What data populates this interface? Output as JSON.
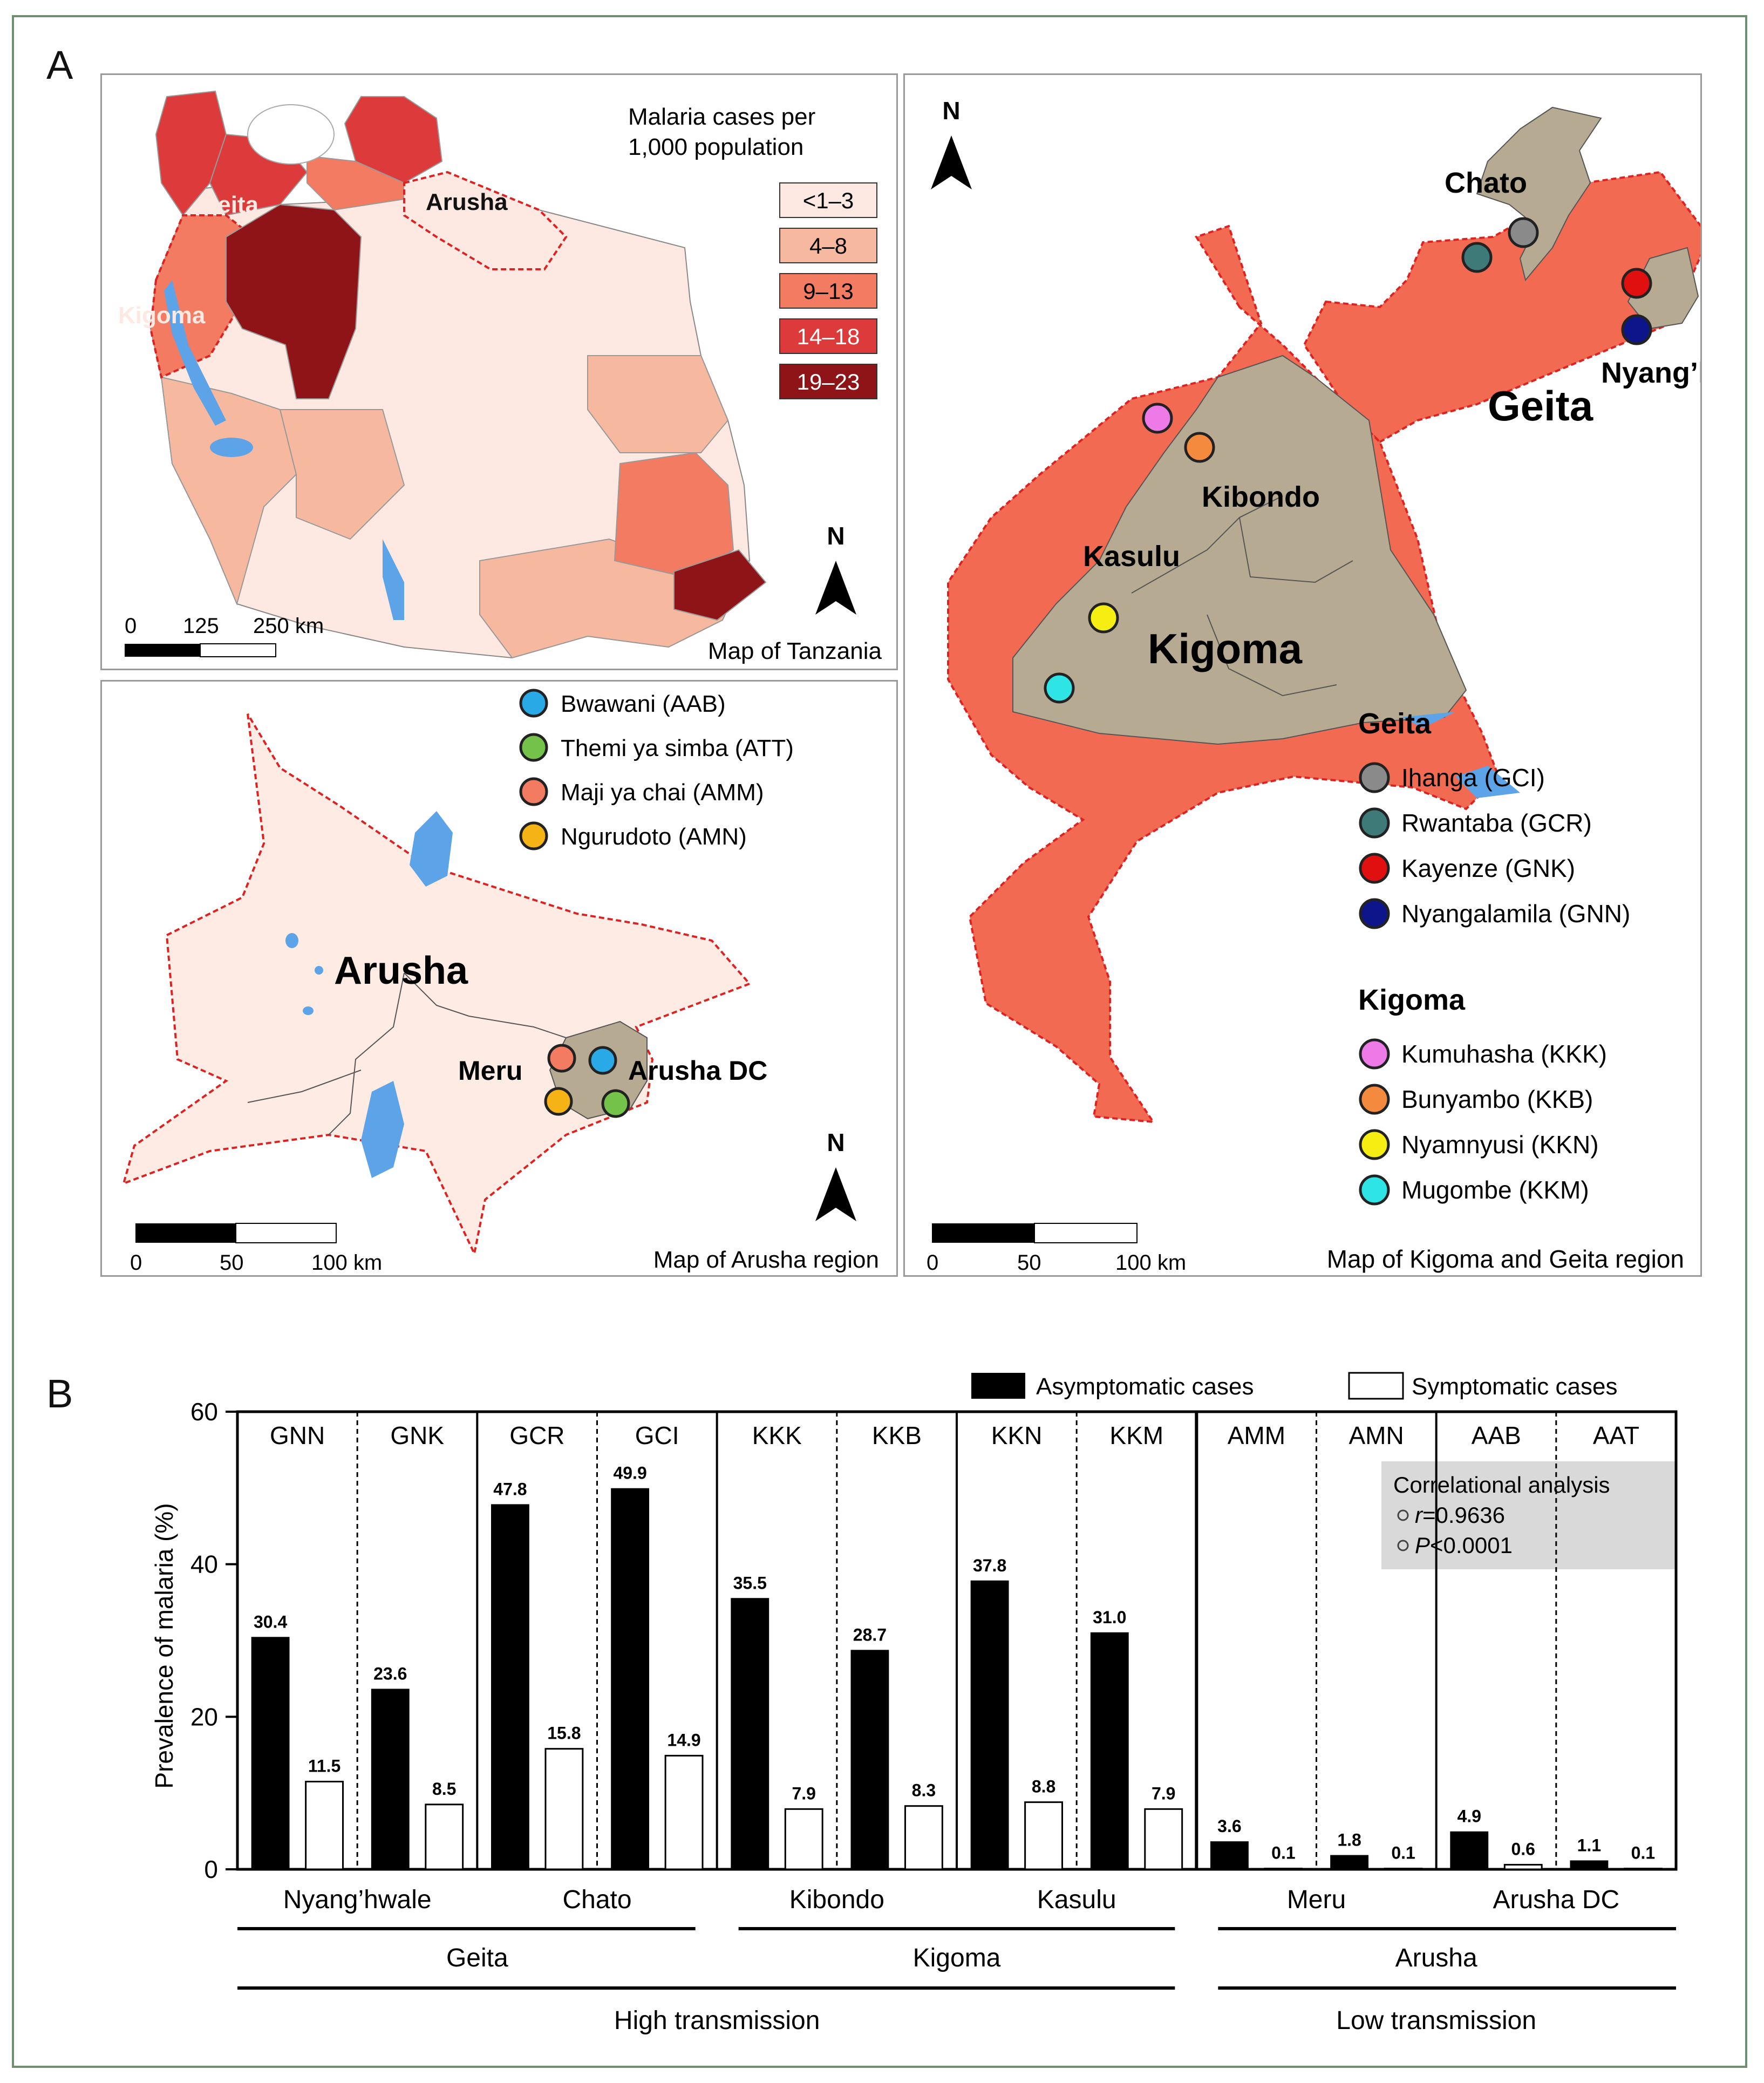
{
  "panel_labels": {
    "a": "A",
    "b": "B"
  },
  "tanzania_map": {
    "title": "Map of Tanzania",
    "legend_title_1": "Malaria cases per",
    "legend_title_2": "1,000 population",
    "legend": [
      {
        "label": "<1–3",
        "color": "#fde9e2"
      },
      {
        "label": "4–8",
        "color": "#f6b9a0"
      },
      {
        "label": "9–13",
        "color": "#f27b62"
      },
      {
        "label": "14–18",
        "color": "#dd3b3b"
      },
      {
        "label": "19–23",
        "color": "#8e1418"
      }
    ],
    "region_labels": {
      "geita": "Geita",
      "kigoma": "Kigoma",
      "arusha": "Arusha"
    },
    "north": "N",
    "scale": {
      "s0": "0",
      "s1": "125",
      "s2": "250 km"
    }
  },
  "arusha_map": {
    "title": "Map of Arusha region",
    "region_label": "Arusha",
    "district_labels": {
      "meru": "Meru",
      "arusha_dc": "Arusha DC"
    },
    "north": "N",
    "scale": {
      "s0": "0",
      "s1": "50",
      "s2": "100 km"
    },
    "legend": [
      {
        "label": "Bwawani (AAB)",
        "color": "#29a9e6"
      },
      {
        "label": "Themi ya simba (ATT)",
        "color": "#74c24a"
      },
      {
        "label": "Maji ya chai (AMM)",
        "color": "#f27b62"
      },
      {
        "label": "Ngurudoto (AMN)",
        "color": "#f5b316"
      }
    ]
  },
  "kigoma_geita_map": {
    "title": "Map of Kigoma and Geita region",
    "region_labels": {
      "geita": "Geita",
      "kigoma": "Kigoma"
    },
    "district_labels": {
      "chato": "Chato",
      "nyanghwale": "Nyang’hwale",
      "kibondo": "Kibondo",
      "kasulu": "Kasulu"
    },
    "north": "N",
    "scale": {
      "s0": "0",
      "s1": "50",
      "s2": "100 km"
    },
    "legend_geita_title": "Geita",
    "legend_geita": [
      {
        "label": "Ihanga (GCI)",
        "color": "#8a8a8a"
      },
      {
        "label": "Rwantaba (GCR)",
        "color": "#3e7a78"
      },
      {
        "label": "Kayenze (GNK)",
        "color": "#e01010"
      },
      {
        "label": "Nyangalamila (GNN)",
        "color": "#0c168a"
      }
    ],
    "legend_kigoma_title": "Kigoma",
    "legend_kigoma": [
      {
        "label": "Kumuhasha (KKK)",
        "color": "#ee7ae8"
      },
      {
        "label": "Bunyambo (KKB)",
        "color": "#f48a3e"
      },
      {
        "label": "Nyamnyusi (KKN)",
        "color": "#f6ee12"
      },
      {
        "label": "Mugombe (KKM)",
        "color": "#2fe4e4"
      }
    ]
  },
  "chart_data": {
    "type": "bar",
    "ylabel": "Prevalence of malaria (%)",
    "ylim": [
      0,
      60
    ],
    "yticks": [
      "0",
      "20",
      "40",
      "60"
    ],
    "categories": [
      "GNN",
      "GNK",
      "GCR",
      "GCI",
      "KKK",
      "KKB",
      "KKN",
      "KKM",
      "AMM",
      "AMN",
      "AAB",
      "AAT"
    ],
    "series": [
      {
        "name": "Asymptomatic cases",
        "color": "#000000",
        "values": [
          30.4,
          23.6,
          47.8,
          49.9,
          35.5,
          28.7,
          37.8,
          31.0,
          3.6,
          1.8,
          4.9,
          1.1
        ],
        "labels": [
          "30.4",
          "23.6",
          "47.8",
          "49.9",
          "35.5",
          "28.7",
          "37.8",
          "31.0",
          "3.6",
          "1.8",
          "4.9",
          "1.1"
        ]
      },
      {
        "name": "Symptomatic cases",
        "color": "#ffffff",
        "values": [
          11.5,
          8.5,
          15.8,
          14.9,
          7.9,
          8.3,
          8.8,
          7.9,
          0.1,
          0.1,
          0.6,
          0.1
        ],
        "labels": [
          "11.5",
          "8.5",
          "15.8",
          "14.9",
          "7.9",
          "8.3",
          "8.8",
          "7.9",
          "0.1",
          "0.1",
          "0.6",
          "0.1"
        ]
      }
    ],
    "districts": [
      "Nyang’hwale",
      "Chato",
      "Kibondo",
      "Kasulu",
      "Meru",
      "Arusha DC"
    ],
    "regions": [
      "Geita",
      "Kigoma",
      "Arusha"
    ],
    "transmission": [
      "High transmission",
      "Low transmission"
    ],
    "annotation": {
      "title": "Correlational analysis",
      "r_label": "r",
      "r_value": "=0.9636",
      "p_label": "P",
      "p_value": "<0.0001"
    }
  }
}
